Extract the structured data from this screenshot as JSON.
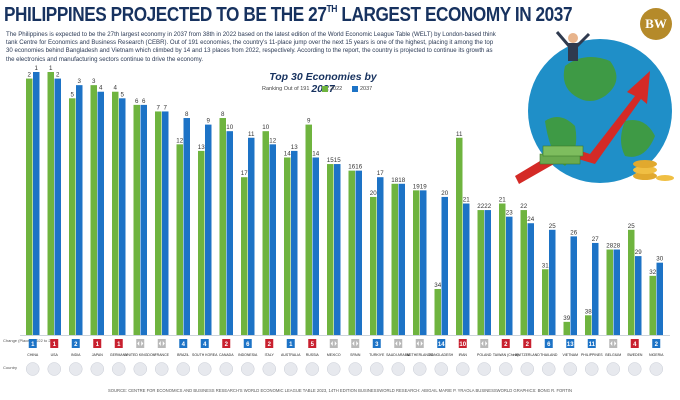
{
  "header": {
    "title_main": "PHILIPPINES PROJECTED TO BE THE 27",
    "title_sup": "TH",
    "title_end": " LARGEST ECONOMY IN 2037",
    "logo_text": "BW",
    "intro_text": "The Philippines is expected to be the 27th largest economy in 2037 from 38th in 2022 based on the latest edition of the World Economic League Table (WELT) by London-based think tank Centre for Economics and Business Research (CEBR). Out of 191 economies, the country's 11-place jump over the next 15 years is one of the highest, placing it among the top 30 economies behind Bangladesh and Vietnam which climbed by 14 and 13 places from 2022, respectively. According to the report, the country is projected to continue its growth as the electronics and manufacturing sectors continue to drive the economy."
  },
  "legend": {
    "ranking_label": "Ranking Out of 191",
    "label_2022": "2022",
    "label_2037": "2037"
  },
  "row_labels": {
    "change": "Change (Places) 2022 to 2037",
    "country": "Country"
  },
  "colors": {
    "color_2022": "#6fb43f",
    "color_2037": "#1d73c6",
    "up": "#1d73c6",
    "down": "#c8202f",
    "same": "#b9b9b9",
    "title": "#17325f"
  },
  "chart_data": {
    "type": "bar",
    "title": "Top 30 Economies by 2037",
    "ylabel": "Ranking Out of 191",
    "ylim": [
      0,
      40
    ],
    "note": "Lower rank = taller bar",
    "categories": [
      "CHINA",
      "USA",
      "INDIA",
      "JAPAN",
      "GERMANY",
      "UNITED KINGDOM",
      "FRANCE",
      "BRAZIL",
      "SOUTH KOREA",
      "CANADA",
      "INDONESIA",
      "ITALY",
      "AUSTRALIA",
      "RUSSIA",
      "MEXICO",
      "SPAIN",
      "TURKIYE",
      "SAUDI ARABIA",
      "NETHERLANDS",
      "BANGLADESH",
      "IRAN",
      "POLAND",
      "TAIWAN (China)",
      "SWITZERLAND",
      "THAILAND",
      "VIETNAM",
      "PHILIPPINES",
      "BELGIUM",
      "SWEDEN",
      "NIGERIA"
    ],
    "series": [
      {
        "name": "2022",
        "values": [
          2,
          1,
          5,
          3,
          4,
          6,
          7,
          12,
          13,
          8,
          17,
          10,
          14,
          9,
          15,
          16,
          20,
          18,
          19,
          34,
          11,
          22,
          21,
          22,
          31,
          39,
          38,
          28,
          25,
          32
        ]
      },
      {
        "name": "2037",
        "values": [
          1,
          2,
          3,
          4,
          5,
          6,
          7,
          8,
          9,
          10,
          11,
          12,
          13,
          14,
          15,
          16,
          17,
          18,
          19,
          20,
          21,
          22,
          23,
          24,
          25,
          26,
          27,
          28,
          29,
          30
        ]
      }
    ],
    "change": [
      "1",
      "1",
      "2",
      "1",
      "1",
      "0",
      "0",
      "4",
      "4",
      "2",
      "6",
      "2",
      "1",
      "5",
      "0",
      "0",
      "3",
      "0",
      "0",
      "14",
      "10",
      "0",
      "2",
      "2",
      "6",
      "13",
      "11",
      "0",
      "4",
      "2"
    ],
    "direction": [
      "up",
      "down",
      "up",
      "down",
      "down",
      "same",
      "same",
      "up",
      "up",
      "down",
      "up",
      "down",
      "up",
      "down",
      "same",
      "same",
      "up",
      "same",
      "same",
      "up",
      "down",
      "same",
      "down",
      "down",
      "up",
      "up",
      "up",
      "same",
      "down",
      "up"
    ]
  },
  "footer": {
    "source": "SOURCE: CENTRE FOR ECONOMICS AND BUSINESS RESEARCH'S WORLD ECONOMIC LEAGUE TABLE 2023, 14TH EDITION     BUSINESSWORLD RESEARCH: ABIGAIL MARIE P. YRAOLA     BUSINESSWORLD GRAPHICS: BONG R. FORTIN"
  }
}
